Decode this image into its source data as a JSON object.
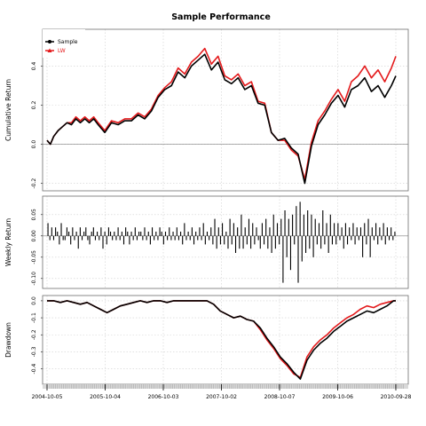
{
  "chart_data": {
    "type": "line",
    "title": "Sample Performance",
    "x_labels": [
      "2004-10-05",
      "2005-10-04",
      "2006-10-03",
      "2007-10-02",
      "2008-10-07",
      "2009-10-06",
      "2010-09-28"
    ],
    "legend": {
      "placement": "top-left",
      "entries": [
        {
          "name": "Sample",
          "color": "#000000"
        },
        {
          "name": "LW",
          "color": "#e41a1c"
        }
      ]
    },
    "panels": [
      {
        "id": "cumulative",
        "ylabel": "Cumulative Return",
        "ylim": [
          -0.22,
          0.57
        ],
        "yticks": [
          -0.2,
          0,
          0.2,
          0.4
        ],
        "ytick_labels": [
          "-0.2",
          "0.0",
          "0.2",
          "0.4"
        ],
        "reference_line": 0,
        "x": [
          0,
          3,
          6,
          10,
          14,
          18,
          22,
          26,
          30,
          34,
          38,
          42,
          46,
          52,
          58,
          64,
          70,
          76,
          82,
          88,
          94,
          100,
          106,
          112,
          118,
          124,
          130,
          136,
          142,
          148,
          154,
          160,
          166,
          172,
          178,
          184,
          190,
          196,
          202,
          208,
          214,
          220,
          226,
          232,
          238,
          244,
          250,
          256,
          262,
          268,
          274,
          280,
          286,
          292,
          298,
          304,
          310,
          314
        ],
        "series": [
          {
            "name": "Sample",
            "color": "#000000",
            "values": [
              0.02,
              0.0,
              0.04,
              0.07,
              0.09,
              0.11,
              0.1,
              0.13,
              0.11,
              0.13,
              0.11,
              0.13,
              0.1,
              0.06,
              0.11,
              0.1,
              0.12,
              0.12,
              0.15,
              0.13,
              0.17,
              0.24,
              0.28,
              0.3,
              0.37,
              0.34,
              0.4,
              0.43,
              0.46,
              0.38,
              0.42,
              0.33,
              0.31,
              0.34,
              0.28,
              0.3,
              0.21,
              0.2,
              0.06,
              0.02,
              0.03,
              -0.02,
              -0.05,
              -0.2,
              -0.01,
              0.1,
              0.15,
              0.21,
              0.25,
              0.19,
              0.28,
              0.3,
              0.34,
              0.27,
              0.3,
              0.24,
              0.3,
              0.35
            ]
          },
          {
            "name": "LW",
            "color": "#e41a1c",
            "values": [
              0.02,
              0.0,
              0.04,
              0.07,
              0.09,
              0.11,
              0.11,
              0.14,
              0.12,
              0.14,
              0.12,
              0.14,
              0.11,
              0.07,
              0.12,
              0.11,
              0.13,
              0.13,
              0.16,
              0.14,
              0.18,
              0.25,
              0.29,
              0.32,
              0.39,
              0.36,
              0.42,
              0.45,
              0.49,
              0.41,
              0.45,
              0.35,
              0.33,
              0.36,
              0.3,
              0.32,
              0.22,
              0.21,
              0.06,
              0.02,
              0.02,
              -0.03,
              -0.06,
              -0.18,
              0.01,
              0.12,
              0.17,
              0.23,
              0.28,
              0.22,
              0.32,
              0.35,
              0.4,
              0.34,
              0.38,
              0.32,
              0.39,
              0.45
            ]
          }
        ]
      },
      {
        "id": "weekly",
        "ylabel": "Weekly Return",
        "type": "bar",
        "ylim": [
          -0.115,
          0.085
        ],
        "yticks": [
          -0.1,
          -0.05,
          0,
          0.05
        ],
        "ytick_labels": [
          "-0.10",
          "-0.05",
          "0.00",
          "0.05"
        ],
        "reference_line": 0,
        "values": [
          0.03,
          -0.01,
          0.02,
          -0.01,
          0.02,
          0.01,
          -0.02,
          0.03,
          -0.01,
          -0.01,
          0.02,
          0.01,
          -0.02,
          0.02,
          -0.01,
          0.01,
          -0.03,
          0.02,
          -0.01,
          0.01,
          0.02,
          -0.01,
          -0.02,
          0.01,
          0.02,
          -0.01,
          0.01,
          -0.01,
          0.02,
          -0.03,
          0.01,
          -0.02,
          0.02,
          0.01,
          -0.01,
          0.01,
          -0.01,
          0.02,
          -0.01,
          0.01,
          -0.02,
          0.02,
          0.01,
          -0.02,
          0.01,
          -0.01,
          0.02,
          -0.01,
          0.01,
          0.01,
          -0.01,
          0.02,
          -0.01,
          0.01,
          -0.02,
          0.02,
          -0.01,
          0.01,
          -0.01,
          0.02,
          0.01,
          -0.02,
          0.01,
          -0.01,
          0.02,
          -0.01,
          0.01,
          -0.01,
          0.02,
          -0.01,
          0.01,
          -0.02,
          0.03,
          -0.01,
          0.01,
          -0.01,
          0.02,
          -0.02,
          0.01,
          -0.01,
          0.02,
          -0.01,
          0.03,
          -0.02,
          0.01,
          -0.01,
          0.02,
          -0.02,
          0.04,
          -0.03,
          0.02,
          -0.02,
          0.03,
          -0.02,
          0.01,
          -0.03,
          0.04,
          -0.02,
          0.03,
          -0.04,
          0.02,
          -0.03,
          0.05,
          -0.03,
          0.02,
          -0.02,
          0.04,
          -0.03,
          0.03,
          -0.02,
          0.02,
          -0.01,
          -0.03,
          0.03,
          -0.02,
          0.04,
          -0.03,
          0.02,
          -0.04,
          0.05,
          -0.03,
          0.03,
          -0.02,
          0.04,
          -0.11,
          0.06,
          -0.05,
          0.04,
          -0.08,
          0.05,
          -0.02,
          0.07,
          -0.11,
          0.08,
          -0.06,
          0.05,
          -0.04,
          0.06,
          -0.03,
          0.05,
          -0.05,
          0.04,
          -0.02,
          0.03,
          -0.03,
          0.06,
          -0.02,
          0.03,
          -0.04,
          0.05,
          -0.02,
          0.03,
          -0.02,
          0.03,
          -0.01,
          0.02,
          -0.03,
          0.03,
          -0.02,
          0.02,
          -0.01,
          0.03,
          -0.02,
          0.02,
          -0.01,
          0.02,
          -0.05,
          0.03,
          -0.02,
          0.04,
          -0.05,
          0.02,
          -0.01,
          0.03,
          -0.02,
          0.02,
          -0.01,
          0.03,
          -0.02,
          0.02,
          -0.01,
          0.02,
          -0.01,
          0.01
        ]
      },
      {
        "id": "drawdown",
        "ylabel": "Drawdown",
        "ylim": [
          -0.47,
          0.01
        ],
        "yticks": [
          -0.4,
          -0.3,
          -0.2,
          -0.1,
          0
        ],
        "ytick_labels": [
          "-0.4",
          "-0.3",
          "-0.2",
          "-0.1",
          "0.0"
        ],
        "x": [
          0,
          6,
          12,
          18,
          24,
          30,
          36,
          42,
          48,
          54,
          60,
          66,
          72,
          78,
          84,
          90,
          96,
          102,
          108,
          114,
          120,
          126,
          132,
          138,
          144,
          150,
          156,
          162,
          168,
          174,
          180,
          186,
          192,
          198,
          204,
          210,
          216,
          222,
          228,
          234,
          240,
          246,
          252,
          258,
          264,
          270,
          276,
          282,
          288,
          294,
          300,
          306,
          312,
          314
        ],
        "series": [
          {
            "name": "Sample",
            "color": "#000000",
            "values": [
              0.0,
              0.0,
              -0.01,
              0.0,
              -0.01,
              -0.02,
              -0.01,
              -0.03,
              -0.05,
              -0.07,
              -0.05,
              -0.03,
              -0.02,
              -0.01,
              0.0,
              -0.01,
              0.0,
              0.0,
              -0.01,
              0.0,
              0.0,
              0.0,
              0.0,
              0.0,
              0.0,
              -0.02,
              -0.06,
              -0.08,
              -0.1,
              -0.09,
              -0.11,
              -0.12,
              -0.16,
              -0.22,
              -0.27,
              -0.33,
              -0.37,
              -0.42,
              -0.46,
              -0.35,
              -0.29,
              -0.25,
              -0.22,
              -0.18,
              -0.15,
              -0.12,
              -0.1,
              -0.08,
              -0.06,
              -0.07,
              -0.05,
              -0.03,
              0.0,
              0.0
            ]
          },
          {
            "name": "LW",
            "color": "#e41a1c",
            "values": [
              0.0,
              0.0,
              -0.01,
              0.0,
              -0.01,
              -0.02,
              -0.01,
              -0.03,
              -0.05,
              -0.07,
              -0.05,
              -0.03,
              -0.02,
              -0.01,
              0.0,
              -0.01,
              0.0,
              0.0,
              -0.01,
              0.0,
              0.0,
              0.0,
              0.0,
              0.0,
              0.0,
              -0.02,
              -0.06,
              -0.08,
              -0.1,
              -0.09,
              -0.11,
              -0.12,
              -0.17,
              -0.23,
              -0.28,
              -0.34,
              -0.38,
              -0.43,
              -0.45,
              -0.33,
              -0.27,
              -0.23,
              -0.2,
              -0.16,
              -0.13,
              -0.1,
              -0.08,
              -0.05,
              -0.03,
              -0.04,
              -0.02,
              -0.01,
              0.0,
              0.0
            ]
          }
        ]
      }
    ]
  }
}
